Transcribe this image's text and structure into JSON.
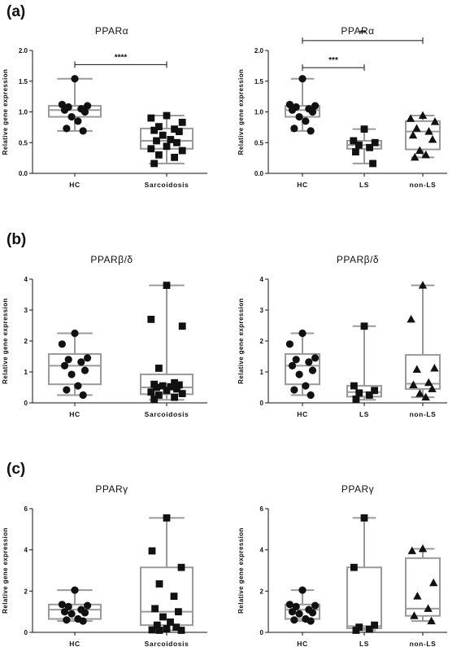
{
  "panels": [
    {
      "label": "(a)",
      "row": 0
    },
    {
      "label": "(b)",
      "row": 1
    },
    {
      "label": "(c)",
      "row": 2
    }
  ],
  "ylabel": "Relative gene expression",
  "chart_data": [
    {
      "type": "box",
      "title": "PPARα",
      "row": 0,
      "col": 0,
      "ylim": [
        0,
        2
      ],
      "yticks": [
        "0.0",
        "0.5",
        "1.0",
        "1.5",
        "2.0"
      ],
      "categories": [
        "HC",
        "Sarcoidosis"
      ],
      "groups": [
        {
          "name": "HC",
          "marker": "circle",
          "box": {
            "min": 0.69,
            "q1": 0.92,
            "median": 1.03,
            "q3": 1.1,
            "max": 1.54
          },
          "points": [
            1.54,
            1.12,
            1.1,
            1.08,
            1.05,
            1.03,
            1.0,
            0.92,
            0.85,
            0.73,
            0.69
          ]
        },
        {
          "name": "Sarcoidosis",
          "marker": "square",
          "box": {
            "min": 0.16,
            "q1": 0.4,
            "median": 0.53,
            "q3": 0.73,
            "max": 0.94
          },
          "points": [
            0.94,
            0.9,
            0.83,
            0.76,
            0.72,
            0.7,
            0.68,
            0.62,
            0.55,
            0.53,
            0.5,
            0.44,
            0.4,
            0.37,
            0.3,
            0.26,
            0.16
          ]
        }
      ],
      "significance": [
        {
          "from": 0,
          "to": 1,
          "label": "****",
          "y": 1.77
        }
      ]
    },
    {
      "type": "box",
      "title": "PPARα",
      "row": 0,
      "col": 1,
      "ylim": [
        0,
        2
      ],
      "yticks": [
        "0.0",
        "0.5",
        "1.0",
        "1.5",
        "2.0"
      ],
      "categories": [
        "HC",
        "LS",
        "non-LS"
      ],
      "groups": [
        {
          "name": "HC",
          "marker": "circle",
          "box": {
            "min": 0.69,
            "q1": 0.92,
            "median": 1.03,
            "q3": 1.1,
            "max": 1.54
          },
          "points": [
            1.54,
            1.12,
            1.1,
            1.08,
            1.05,
            1.03,
            1.0,
            0.92,
            0.85,
            0.73,
            0.69
          ]
        },
        {
          "name": "LS",
          "marker": "square",
          "box": {
            "min": 0.16,
            "q1": 0.4,
            "median": 0.46,
            "q3": 0.53,
            "max": 0.72
          },
          "points": [
            0.72,
            0.53,
            0.5,
            0.46,
            0.42,
            0.35,
            0.16
          ]
        },
        {
          "name": "non-LS",
          "marker": "triangle",
          "box": {
            "min": 0.26,
            "q1": 0.39,
            "median": 0.68,
            "q3": 0.85,
            "max": 0.94
          },
          "points": [
            0.94,
            0.89,
            0.84,
            0.73,
            0.68,
            0.62,
            0.55,
            0.37,
            0.3,
            0.26
          ]
        }
      ],
      "significance": [
        {
          "from": 0,
          "to": 2,
          "label": "**",
          "y": 2.16
        },
        {
          "from": 0,
          "to": 1,
          "label": "***",
          "y": 1.72
        }
      ]
    },
    {
      "type": "box",
      "title": "PPARβ/δ",
      "row": 1,
      "col": 0,
      "ylim": [
        0,
        4
      ],
      "yticks": [
        "0",
        "1",
        "2",
        "3",
        "4"
      ],
      "categories": [
        "HC",
        "Sarcoidosis"
      ],
      "groups": [
        {
          "name": "HC",
          "marker": "circle",
          "box": {
            "min": 0.25,
            "q1": 0.6,
            "median": 1.2,
            "q3": 1.58,
            "max": 2.25
          },
          "points": [
            2.25,
            1.9,
            1.45,
            1.4,
            1.32,
            1.2,
            1.05,
            0.92,
            0.55,
            0.42,
            0.25
          ]
        },
        {
          "name": "Sarcoidosis",
          "marker": "square",
          "box": {
            "min": 0.1,
            "q1": 0.28,
            "median": 0.5,
            "q3": 0.92,
            "max": 3.8
          },
          "points": [
            3.8,
            2.7,
            2.48,
            1.12,
            0.65,
            0.6,
            0.58,
            0.55,
            0.52,
            0.5,
            0.45,
            0.4,
            0.35,
            0.3,
            0.25,
            0.18,
            0.12
          ]
        }
      ]
    },
    {
      "type": "box",
      "title": "PPARβ/δ",
      "row": 1,
      "col": 1,
      "ylim": [
        0,
        4
      ],
      "yticks": [
        "0",
        "1",
        "2",
        "3",
        "4"
      ],
      "categories": [
        "HC",
        "LS",
        "non-LS"
      ],
      "groups": [
        {
          "name": "HC",
          "marker": "circle",
          "box": {
            "min": 0.25,
            "q1": 0.6,
            "median": 1.2,
            "q3": 1.58,
            "max": 2.25
          },
          "points": [
            2.25,
            1.9,
            1.45,
            1.4,
            1.32,
            1.2,
            1.05,
            0.92,
            0.55,
            0.42,
            0.25
          ]
        },
        {
          "name": "LS",
          "marker": "square",
          "box": {
            "min": 0.1,
            "q1": 0.2,
            "median": 0.35,
            "q3": 0.55,
            "max": 2.48
          },
          "points": [
            2.48,
            0.55,
            0.4,
            0.32,
            0.25,
            0.12
          ]
        },
        {
          "name": "non-LS",
          "marker": "triangle",
          "box": {
            "min": 0.18,
            "q1": 0.45,
            "median": 0.62,
            "q3": 1.55,
            "max": 3.8
          },
          "points": [
            3.8,
            2.7,
            1.12,
            1.08,
            0.65,
            0.58,
            0.45,
            0.3,
            0.18
          ]
        }
      ]
    },
    {
      "type": "box",
      "title": "PPARγ",
      "row": 2,
      "col": 0,
      "ylim": [
        0,
        6
      ],
      "yticks": [
        "0",
        "2",
        "4",
        "6"
      ],
      "categories": [
        "HC",
        "Sarcoidosis"
      ],
      "groups": [
        {
          "name": "HC",
          "marker": "circle",
          "box": {
            "min": 0.55,
            "q1": 0.65,
            "median": 1.1,
            "q3": 1.35,
            "max": 2.05
          },
          "points": [
            2.05,
            1.35,
            1.3,
            1.25,
            1.1,
            1.0,
            0.95,
            0.9,
            0.65,
            0.6,
            0.55
          ]
        },
        {
          "name": "Sarcoidosis",
          "marker": "square",
          "box": {
            "min": 0.1,
            "q1": 0.35,
            "median": 1.0,
            "q3": 3.15,
            "max": 5.55
          },
          "points": [
            5.55,
            3.95,
            3.15,
            2.35,
            1.75,
            1.15,
            1.0,
            0.75,
            0.5,
            0.35,
            0.25,
            0.18,
            0.12,
            0.1,
            0.1
          ]
        }
      ]
    },
    {
      "type": "box",
      "title": "PPARγ",
      "row": 2,
      "col": 1,
      "ylim": [
        0,
        6
      ],
      "yticks": [
        "0",
        "2",
        "4",
        "6"
      ],
      "categories": [
        "HC",
        "LS",
        "non-LS"
      ],
      "groups": [
        {
          "name": "HC",
          "marker": "circle",
          "box": {
            "min": 0.55,
            "q1": 0.65,
            "median": 1.1,
            "q3": 1.35,
            "max": 2.05
          },
          "points": [
            2.05,
            1.35,
            1.3,
            1.25,
            1.1,
            1.0,
            0.95,
            0.9,
            0.65,
            0.6,
            0.55
          ]
        },
        {
          "name": "LS",
          "marker": "square",
          "box": {
            "min": 0.1,
            "q1": 0.2,
            "median": 0.3,
            "q3": 3.15,
            "max": 5.55
          },
          "points": [
            5.55,
            3.15,
            0.35,
            0.25,
            0.15,
            0.1
          ]
        },
        {
          "name": "non-LS",
          "marker": "triangle",
          "box": {
            "min": 0.55,
            "q1": 0.8,
            "median": 1.15,
            "q3": 3.6,
            "max": 4.05
          },
          "points": [
            4.05,
            3.95,
            2.4,
            1.75,
            1.15,
            0.8,
            0.55
          ]
        }
      ]
    }
  ]
}
